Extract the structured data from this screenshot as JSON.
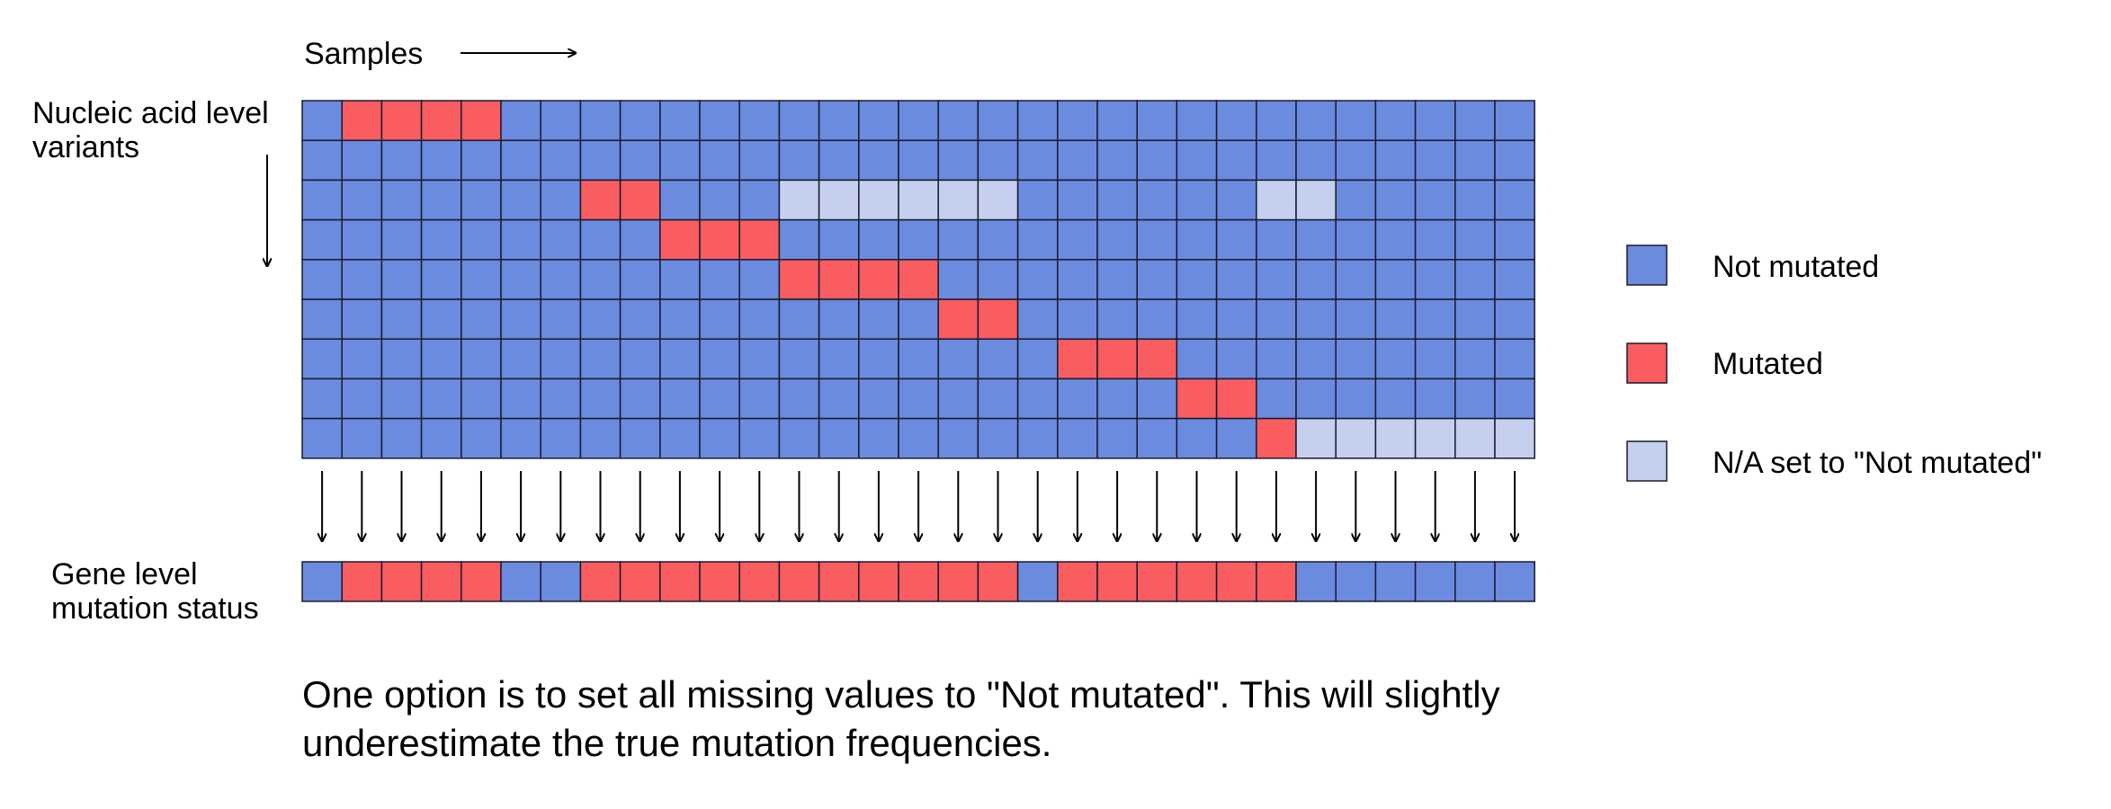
{
  "labels": {
    "samples": "Samples",
    "variants_line1": "Nucleic acid level",
    "variants_line2": "variants",
    "gene_line1": "Gene level",
    "gene_line2": "mutation status"
  },
  "legend": [
    {
      "key": "not_mutated",
      "label": "Not mutated",
      "color": "#6b8bdf"
    },
    {
      "key": "mutated",
      "label": "Mutated",
      "color": "#f95d5f"
    },
    {
      "key": "na",
      "label": "N/A set to \"Not mutated\"",
      "color": "#c5d0ef"
    }
  ],
  "caption_line1": "One option is to set all missing values to \"Not mutated\". This will slightly",
  "caption_line2": "underestimate the true mutation frequencies.",
  "matrix": {
    "codes": "0 = Not mutated, 1 = Mutated, 2 = N/A set to \"Not mutated\"",
    "rows": [
      [
        0,
        1,
        1,
        1,
        1,
        0,
        0,
        0,
        0,
        0,
        0,
        0,
        0,
        0,
        0,
        0,
        0,
        0,
        0,
        0,
        0,
        0,
        0,
        0,
        0,
        0,
        0,
        0,
        0,
        0,
        0
      ],
      [
        0,
        0,
        0,
        0,
        0,
        0,
        0,
        0,
        0,
        0,
        0,
        0,
        0,
        0,
        0,
        0,
        0,
        0,
        0,
        0,
        0,
        0,
        0,
        0,
        0,
        0,
        0,
        0,
        0,
        0,
        0
      ],
      [
        0,
        0,
        0,
        0,
        0,
        0,
        0,
        1,
        1,
        0,
        0,
        0,
        2,
        2,
        2,
        2,
        2,
        2,
        0,
        0,
        0,
        0,
        0,
        0,
        2,
        2,
        0,
        0,
        0,
        0,
        0
      ],
      [
        0,
        0,
        0,
        0,
        0,
        0,
        0,
        0,
        0,
        1,
        1,
        1,
        0,
        0,
        0,
        0,
        0,
        0,
        0,
        0,
        0,
        0,
        0,
        0,
        0,
        0,
        0,
        0,
        0,
        0,
        0
      ],
      [
        0,
        0,
        0,
        0,
        0,
        0,
        0,
        0,
        0,
        0,
        0,
        0,
        1,
        1,
        1,
        1,
        0,
        0,
        0,
        0,
        0,
        0,
        0,
        0,
        0,
        0,
        0,
        0,
        0,
        0,
        0
      ],
      [
        0,
        0,
        0,
        0,
        0,
        0,
        0,
        0,
        0,
        0,
        0,
        0,
        0,
        0,
        0,
        0,
        1,
        1,
        0,
        0,
        0,
        0,
        0,
        0,
        0,
        0,
        0,
        0,
        0,
        0,
        0
      ],
      [
        0,
        0,
        0,
        0,
        0,
        0,
        0,
        0,
        0,
        0,
        0,
        0,
        0,
        0,
        0,
        0,
        0,
        0,
        0,
        1,
        1,
        1,
        0,
        0,
        0,
        0,
        0,
        0,
        0,
        0,
        0
      ],
      [
        0,
        0,
        0,
        0,
        0,
        0,
        0,
        0,
        0,
        0,
        0,
        0,
        0,
        0,
        0,
        0,
        0,
        0,
        0,
        0,
        0,
        0,
        1,
        1,
        0,
        0,
        0,
        0,
        0,
        0,
        0
      ],
      [
        0,
        0,
        0,
        0,
        0,
        0,
        0,
        0,
        0,
        0,
        0,
        0,
        0,
        0,
        0,
        0,
        0,
        0,
        0,
        0,
        0,
        0,
        0,
        0,
        1,
        2,
        2,
        2,
        2,
        2,
        2
      ]
    ]
  },
  "gene_status": [
    0,
    1,
    1,
    1,
    1,
    0,
    0,
    1,
    1,
    1,
    1,
    1,
    1,
    1,
    1,
    1,
    1,
    1,
    0,
    1,
    1,
    1,
    1,
    1,
    1,
    0,
    0,
    0,
    0,
    0,
    0
  ]
}
